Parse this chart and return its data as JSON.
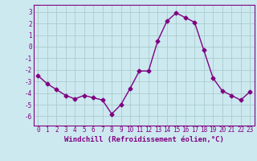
{
  "x": [
    0,
    1,
    2,
    3,
    4,
    5,
    6,
    7,
    8,
    9,
    10,
    11,
    12,
    13,
    14,
    15,
    16,
    17,
    18,
    19,
    20,
    21,
    22,
    23
  ],
  "y": [
    -2.5,
    -3.2,
    -3.7,
    -4.2,
    -4.5,
    -4.2,
    -4.4,
    -4.6,
    -5.8,
    -5.0,
    -3.6,
    -2.1,
    -2.1,
    0.5,
    2.2,
    2.9,
    2.5,
    2.1,
    -0.3,
    -2.7,
    -3.8,
    -4.2,
    -4.6,
    -3.9
  ],
  "line_color": "#800080",
  "marker": "D",
  "markersize": 2.5,
  "linewidth": 1.0,
  "xlabel": "Windchill (Refroidissement éolien,°C)",
  "xlabel_fontsize": 6.5,
  "xtick_labels": [
    "0",
    "1",
    "2",
    "3",
    "4",
    "5",
    "6",
    "7",
    "8",
    "9",
    "10",
    "11",
    "12",
    "13",
    "14",
    "15",
    "16",
    "17",
    "18",
    "19",
    "20",
    "21",
    "22",
    "23"
  ],
  "ytick_values": [
    -6,
    -5,
    -4,
    -3,
    -2,
    -1,
    0,
    1,
    2,
    3
  ],
  "ylim": [
    -6.8,
    3.6
  ],
  "xlim": [
    -0.5,
    23.5
  ],
  "bg_color": "#cce9f0",
  "grid_color": "#aacccc",
  "tick_fontsize": 5.5,
  "label_color": "#800080"
}
